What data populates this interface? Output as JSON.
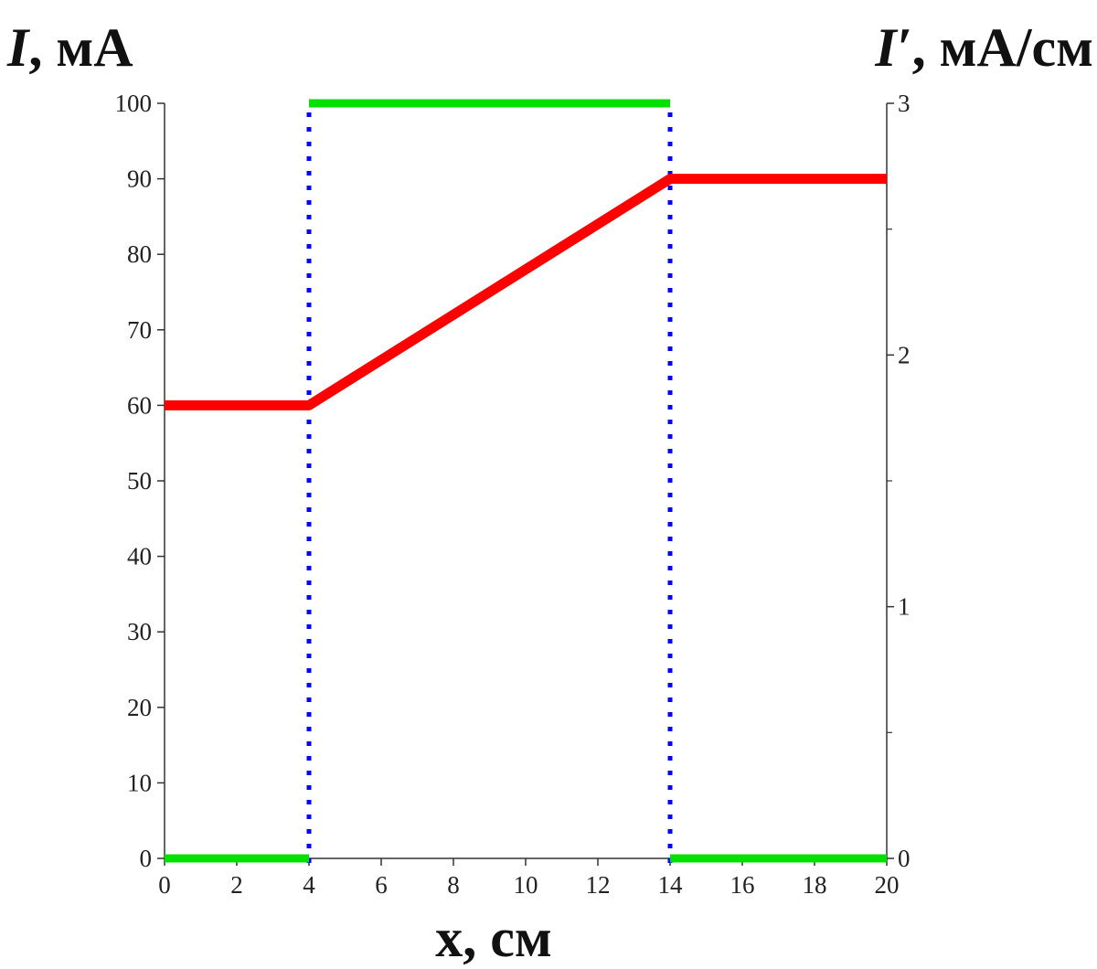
{
  "chart_data": {
    "type": "line",
    "title": "",
    "xlabel": "x, см",
    "ylabel": {
      "symbol": "I",
      "unit": ", мА"
    },
    "y2label": {
      "symbol": "I′",
      "unit": ", мА/см"
    },
    "xlim": [
      0,
      20
    ],
    "ylim": [
      0,
      100
    ],
    "y2lim": [
      0,
      3
    ],
    "x_ticks": [
      0,
      2,
      4,
      6,
      8,
      10,
      12,
      14,
      16,
      18,
      20
    ],
    "y_ticks": [
      0,
      10,
      20,
      30,
      40,
      50,
      60,
      70,
      80,
      90,
      100
    ],
    "y2_ticks": [
      0,
      1,
      2,
      3
    ],
    "y2_minor_ticks": [
      0.5,
      1.5,
      2.5
    ],
    "grid": false,
    "series": [
      {
        "axis": "left",
        "color": "#ff0000",
        "points": [
          [
            0,
            60
          ],
          [
            4,
            60
          ],
          [
            14,
            90
          ],
          [
            20,
            90
          ]
        ]
      },
      {
        "axis": "right",
        "color": "#00e000",
        "segments": [
          [
            [
              0,
              0
            ],
            [
              4,
              0
            ]
          ],
          [
            [
              4,
              3
            ],
            [
              14,
              3
            ]
          ],
          [
            [
              14,
              0
            ],
            [
              20,
              0
            ]
          ]
        ]
      }
    ],
    "vertical_markers": [
      {
        "x": 4,
        "color": "#0000ff",
        "style": "dotted"
      },
      {
        "x": 14,
        "color": "#0000ff",
        "style": "dotted"
      }
    ]
  }
}
